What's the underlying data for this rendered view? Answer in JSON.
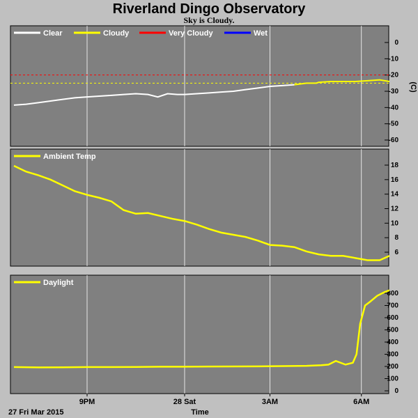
{
  "header": {
    "title": "Riverland Dingo Observatory",
    "subtitle": "Sky is Cloudy."
  },
  "footer": {
    "date_label": "27 Fri Mar 2015",
    "time_label": "Time"
  },
  "colors": {
    "background": "#c0c0c0",
    "plot_bg": "#808080",
    "grid": "#ffffff",
    "clear": "#ffffff",
    "cloudy": "#ffff00",
    "very_cloudy": "#ff0000",
    "wet": "#0000ff"
  },
  "chart_data": [
    {
      "type": "line",
      "panel": "sky",
      "unit_label": "(C)",
      "ylim": [
        -60,
        10
      ],
      "y_ticks": [
        0,
        -10,
        -20,
        -30,
        -40,
        -50,
        -60
      ],
      "x_ticks": [
        "9PM",
        "28 Sat",
        "3AM",
        "6AM"
      ],
      "grid": true,
      "legend_position": "top-left",
      "legend": [
        {
          "label": "Clear",
          "color": "#ffffff"
        },
        {
          "label": "Cloudy",
          "color": "#ffff00"
        },
        {
          "label": "Very Cloudy",
          "color": "#ff0000"
        },
        {
          "label": "Wet",
          "color": "#0000ff"
        }
      ],
      "threshold_lines": [
        {
          "value": -20,
          "color": "#ff0000"
        },
        {
          "value": -25,
          "color": "#ffff00"
        }
      ],
      "x": [
        18.0,
        18.5,
        19.0,
        19.5,
        20.0,
        20.5,
        21.0,
        21.5,
        22.0,
        22.5,
        23.0,
        23.5,
        23.9,
        24.3,
        24.7,
        25.0,
        25.5,
        26.0,
        26.5,
        27.0,
        27.5,
        28.0,
        28.5,
        29.0,
        29.5,
        30.0,
        30.4,
        30.5,
        31.0,
        31.5,
        32.0,
        32.5,
        33.0,
        33.4
      ],
      "series": [
        {
          "values": [
            -38.5,
            -38.0,
            -37.0,
            -36.0,
            -35.0,
            -34.0,
            -33.5,
            -33.0,
            -32.5,
            -32.0,
            -31.5,
            -32.0,
            -33.5,
            -31.5,
            -32.0,
            -32.0,
            -31.5,
            -31.0,
            -30.5,
            -30.0,
            -29.0,
            -28.0,
            -27.0,
            -26.5,
            -26.0,
            -25.0,
            -25.0,
            -24.5,
            -24.0,
            -24.0,
            -24.0,
            -23.5,
            -23.0,
            -24.0
          ],
          "colors_by_state": [
            "clear",
            "cloudy"
          ]
        }
      ]
    },
    {
      "type": "line",
      "panel": "ambient",
      "ylim": [
        4,
        19
      ],
      "y_ticks": [
        18,
        16,
        14,
        12,
        10,
        8,
        6
      ],
      "x_ticks": [
        "9PM",
        "28 Sat",
        "3AM",
        "6AM"
      ],
      "grid": true,
      "legend_position": "top-left",
      "legend": [
        {
          "label": "Ambient Temp",
          "color": "#ffff00"
        }
      ],
      "x": [
        18.0,
        18.5,
        19.0,
        19.5,
        20.0,
        20.5,
        21.0,
        21.5,
        22.0,
        22.5,
        23.0,
        23.5,
        24.0,
        24.5,
        25.0,
        25.5,
        26.0,
        26.5,
        27.0,
        27.5,
        28.0,
        28.5,
        29.0,
        29.5,
        30.0,
        30.5,
        31.0,
        31.5,
        32.0,
        32.5,
        33.0,
        33.4
      ],
      "series": [
        {
          "name": "Ambient Temp",
          "values": [
            17.9,
            17.1,
            16.6,
            16.0,
            15.2,
            14.4,
            13.9,
            13.5,
            13.0,
            11.8,
            11.3,
            11.4,
            11.0,
            10.6,
            10.3,
            9.8,
            9.2,
            8.7,
            8.4,
            8.1,
            7.6,
            7.0,
            6.9,
            6.7,
            6.1,
            5.7,
            5.5,
            5.5,
            5.2,
            4.9,
            4.9,
            5.5
          ]
        }
      ]
    },
    {
      "type": "line",
      "panel": "daylight",
      "ylim": [
        0,
        850
      ],
      "y_ticks": [
        800,
        700,
        600,
        500,
        400,
        300,
        200,
        100,
        0
      ],
      "x_ticks": [
        "9PM",
        "28 Sat",
        "3AM",
        "6AM"
      ],
      "grid": true,
      "legend_position": "top-left",
      "legend": [
        {
          "label": "Daylight",
          "color": "#ffff00"
        }
      ],
      "x": [
        18.0,
        19.0,
        20.0,
        21.0,
        22.0,
        23.0,
        24.0,
        25.0,
        26.0,
        27.0,
        28.0,
        29.0,
        30.0,
        30.6,
        30.9,
        31.2,
        31.6,
        31.9,
        32.05,
        32.2,
        32.4,
        32.6,
        32.9,
        33.2,
        33.4
      ],
      "series": [
        {
          "name": "Daylight",
          "values": [
            195,
            192,
            193,
            195,
            195,
            196,
            198,
            198,
            199,
            200,
            201,
            203,
            205,
            210,
            215,
            245,
            215,
            230,
            300,
            550,
            700,
            730,
            780,
            810,
            825
          ]
        }
      ]
    }
  ]
}
